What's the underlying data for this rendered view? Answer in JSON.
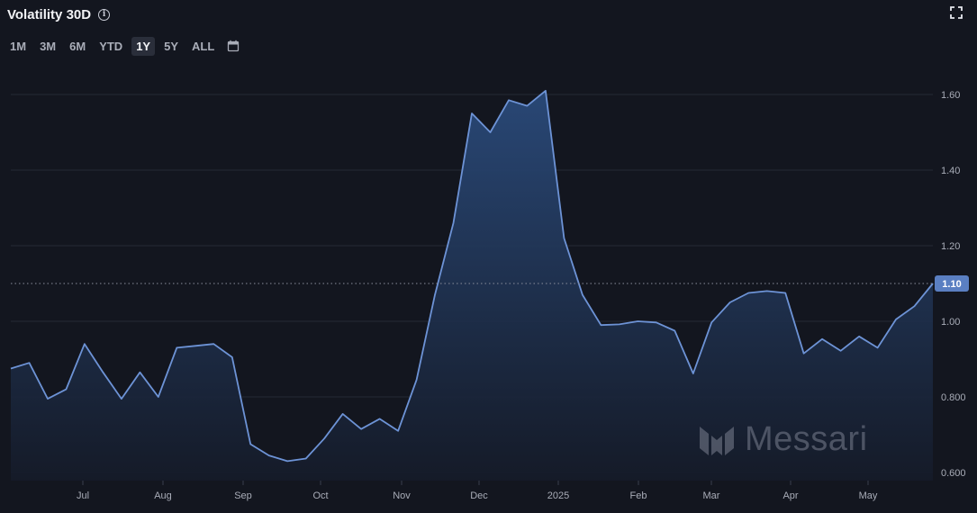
{
  "header": {
    "title": "Volatility 30D",
    "info_icon": "info-icon",
    "expand_icon": "expand-icon"
  },
  "range_selector": {
    "options": [
      "1M",
      "3M",
      "6M",
      "YTD",
      "1Y",
      "5Y",
      "ALL"
    ],
    "selected": "1Y",
    "calendar_icon": "calendar-icon"
  },
  "watermark": {
    "text": "Messari"
  },
  "colors": {
    "background": "#13161f",
    "line": "#6d93d6",
    "fill_top": "#2a4a7a",
    "fill_bottom": "#151b29",
    "grid": "#262a35",
    "badge": "#5a7fc2"
  },
  "chart_data": {
    "type": "area",
    "title": "Volatility 30D",
    "xlabel": "",
    "ylabel": "",
    "x_ticks": [
      "Jul",
      "Aug",
      "Sep",
      "Oct",
      "Nov",
      "Dec",
      "2025",
      "Feb",
      "Mar",
      "Apr",
      "May"
    ],
    "y_ticks": [
      "0.600",
      "0.800",
      "1.00",
      "1.20",
      "1.40",
      "1.60"
    ],
    "ylim": [
      0.6,
      1.6
    ],
    "grid": true,
    "current_value": 1.1,
    "current_label": "1.10",
    "series": [
      {
        "x": [
          "2024-06-09",
          "2024-06-16",
          "2024-06-23",
          "2024-06-30",
          "2024-07-07",
          "2024-07-14",
          "2024-07-21",
          "2024-07-28",
          "2024-08-04",
          "2024-08-11",
          "2024-08-18",
          "2024-08-25",
          "2024-09-01",
          "2024-09-08",
          "2024-09-15",
          "2024-09-22",
          "2024-09-29",
          "2024-10-06",
          "2024-10-13",
          "2024-10-20",
          "2024-10-27",
          "2024-11-03",
          "2024-11-10",
          "2024-11-17",
          "2024-11-24",
          "2024-12-01",
          "2024-12-08",
          "2024-12-15",
          "2024-12-22",
          "2024-12-29",
          "2025-01-05",
          "2025-01-12",
          "2025-01-19",
          "2025-01-26",
          "2025-02-02",
          "2025-02-09",
          "2025-02-16",
          "2025-02-23",
          "2025-03-02",
          "2025-03-09",
          "2025-03-16",
          "2025-03-23",
          "2025-03-30",
          "2025-04-06",
          "2025-04-13",
          "2025-04-20",
          "2025-04-27",
          "2025-05-04",
          "2025-05-11",
          "2025-05-18",
          "2025-05-25"
        ],
        "values": [
          0.875,
          0.89,
          0.795,
          0.82,
          0.94,
          0.865,
          0.795,
          0.865,
          0.8,
          0.93,
          0.935,
          0.94,
          0.905,
          0.675,
          0.645,
          0.63,
          0.637,
          0.69,
          0.755,
          0.715,
          0.742,
          0.71,
          0.845,
          1.07,
          1.26,
          1.55,
          1.5,
          1.585,
          1.57,
          1.61,
          1.22,
          1.07,
          0.99,
          0.992,
          1.0,
          0.997,
          0.975,
          0.862,
          0.997,
          1.05,
          1.075,
          1.08,
          1.075,
          0.915,
          0.953,
          0.922,
          0.96,
          0.93,
          1.005,
          1.04,
          1.1
        ]
      }
    ]
  }
}
